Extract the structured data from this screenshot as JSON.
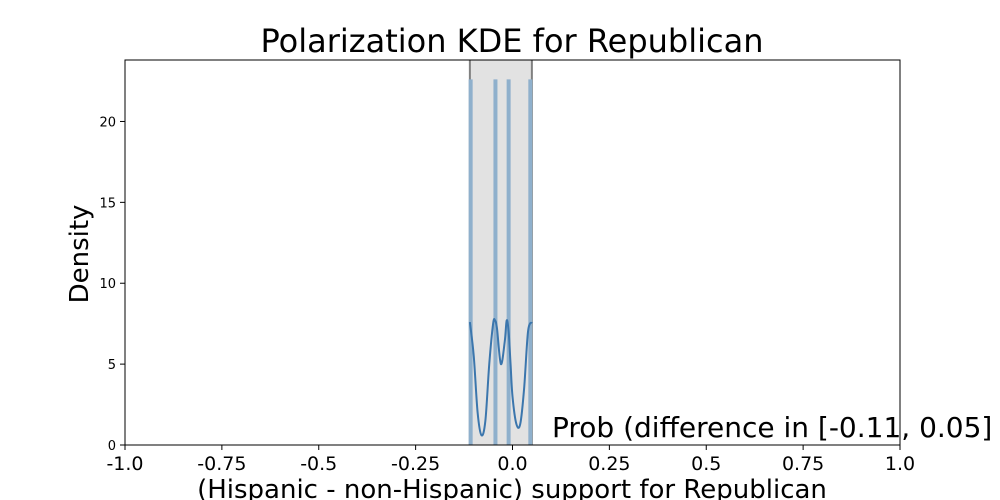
{
  "chart_data": {
    "type": "area",
    "title": "Polarization KDE for Republican",
    "xlabel": "(Hispanic - non-Hispanic) support for Republican",
    "ylabel": "Density",
    "xlim": [
      -1.0,
      1.0
    ],
    "ylim": [
      0,
      23.8
    ],
    "grid": false,
    "x_ticks": [
      "-1.0",
      "-0.75",
      "-0.5",
      "-0.25",
      "0.0",
      "0.25",
      "0.5",
      "0.75",
      "1.0"
    ],
    "x_tick_values": [
      -1.0,
      -0.75,
      -0.5,
      -0.25,
      0.0,
      0.25,
      0.5,
      0.75,
      1.0
    ],
    "y_ticks": [
      "0",
      "5",
      "10",
      "15",
      "20"
    ],
    "y_tick_values": [
      0,
      5,
      10,
      15,
      20
    ],
    "interval": {
      "low": -0.11,
      "high": 0.05
    },
    "vertical_lines": [
      {
        "x": -0.108,
        "height": 22.6
      },
      {
        "x": -0.044,
        "height": 22.6
      },
      {
        "x": -0.01,
        "height": 22.6
      },
      {
        "x": 0.046,
        "height": 22.6
      }
    ],
    "kde": {
      "x": [
        -0.11,
        -0.1,
        -0.09,
        -0.08,
        -0.07,
        -0.06,
        -0.05,
        -0.045,
        -0.04,
        -0.03,
        -0.02,
        -0.015,
        -0.01,
        -0.005,
        0.0,
        0.01,
        0.02,
        0.03,
        0.04,
        0.05
      ],
      "y": [
        7.6,
        5.5,
        2.0,
        0.6,
        1.5,
        5.0,
        7.5,
        7.7,
        7.2,
        5.0,
        6.4,
        7.7,
        7.0,
        5.0,
        3.0,
        1.3,
        1.3,
        3.5,
        7.0,
        7.6
      ]
    },
    "annotation": "Prob (difference in [-0.11, 0.05]",
    "colors": {
      "kde_line": "#3b76ad",
      "vertical_line": "#8fb0cc",
      "interval_fill": "#e2e2e2",
      "interval_edge": "#808080"
    }
  }
}
